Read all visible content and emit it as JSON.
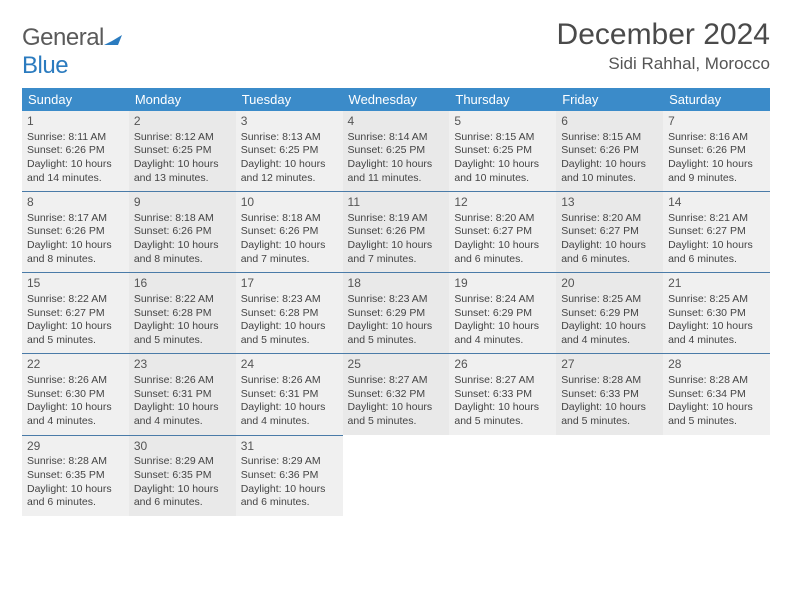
{
  "logo": {
    "general": "General",
    "blue": "Blue"
  },
  "title": "December 2024",
  "location": "Sidi Rahhal, Morocco",
  "day_headers": [
    "Sunday",
    "Monday",
    "Tuesday",
    "Wednesday",
    "Thursday",
    "Friday",
    "Saturday"
  ],
  "colors": {
    "header_bg": "#3b8bc9",
    "header_text": "#ffffff",
    "cell_bg_a": "#f0f0f0",
    "cell_bg_b": "#e9e9e9",
    "row_border": "#4a7ba8",
    "logo_blue": "#2b7bbf",
    "logo_gray": "#5a5a5a"
  },
  "days": [
    {
      "n": "1",
      "sr": "8:11 AM",
      "ss": "6:26 PM",
      "dl": "10 hours and 14 minutes."
    },
    {
      "n": "2",
      "sr": "8:12 AM",
      "ss": "6:25 PM",
      "dl": "10 hours and 13 minutes."
    },
    {
      "n": "3",
      "sr": "8:13 AM",
      "ss": "6:25 PM",
      "dl": "10 hours and 12 minutes."
    },
    {
      "n": "4",
      "sr": "8:14 AM",
      "ss": "6:25 PM",
      "dl": "10 hours and 11 minutes."
    },
    {
      "n": "5",
      "sr": "8:15 AM",
      "ss": "6:25 PM",
      "dl": "10 hours and 10 minutes."
    },
    {
      "n": "6",
      "sr": "8:15 AM",
      "ss": "6:26 PM",
      "dl": "10 hours and 10 minutes."
    },
    {
      "n": "7",
      "sr": "8:16 AM",
      "ss": "6:26 PM",
      "dl": "10 hours and 9 minutes."
    },
    {
      "n": "8",
      "sr": "8:17 AM",
      "ss": "6:26 PM",
      "dl": "10 hours and 8 minutes."
    },
    {
      "n": "9",
      "sr": "8:18 AM",
      "ss": "6:26 PM",
      "dl": "10 hours and 8 minutes."
    },
    {
      "n": "10",
      "sr": "8:18 AM",
      "ss": "6:26 PM",
      "dl": "10 hours and 7 minutes."
    },
    {
      "n": "11",
      "sr": "8:19 AM",
      "ss": "6:26 PM",
      "dl": "10 hours and 7 minutes."
    },
    {
      "n": "12",
      "sr": "8:20 AM",
      "ss": "6:27 PM",
      "dl": "10 hours and 6 minutes."
    },
    {
      "n": "13",
      "sr": "8:20 AM",
      "ss": "6:27 PM",
      "dl": "10 hours and 6 minutes."
    },
    {
      "n": "14",
      "sr": "8:21 AM",
      "ss": "6:27 PM",
      "dl": "10 hours and 6 minutes."
    },
    {
      "n": "15",
      "sr": "8:22 AM",
      "ss": "6:27 PM",
      "dl": "10 hours and 5 minutes."
    },
    {
      "n": "16",
      "sr": "8:22 AM",
      "ss": "6:28 PM",
      "dl": "10 hours and 5 minutes."
    },
    {
      "n": "17",
      "sr": "8:23 AM",
      "ss": "6:28 PM",
      "dl": "10 hours and 5 minutes."
    },
    {
      "n": "18",
      "sr": "8:23 AM",
      "ss": "6:29 PM",
      "dl": "10 hours and 5 minutes."
    },
    {
      "n": "19",
      "sr": "8:24 AM",
      "ss": "6:29 PM",
      "dl": "10 hours and 4 minutes."
    },
    {
      "n": "20",
      "sr": "8:25 AM",
      "ss": "6:29 PM",
      "dl": "10 hours and 4 minutes."
    },
    {
      "n": "21",
      "sr": "8:25 AM",
      "ss": "6:30 PM",
      "dl": "10 hours and 4 minutes."
    },
    {
      "n": "22",
      "sr": "8:26 AM",
      "ss": "6:30 PM",
      "dl": "10 hours and 4 minutes."
    },
    {
      "n": "23",
      "sr": "8:26 AM",
      "ss": "6:31 PM",
      "dl": "10 hours and 4 minutes."
    },
    {
      "n": "24",
      "sr": "8:26 AM",
      "ss": "6:31 PM",
      "dl": "10 hours and 4 minutes."
    },
    {
      "n": "25",
      "sr": "8:27 AM",
      "ss": "6:32 PM",
      "dl": "10 hours and 5 minutes."
    },
    {
      "n": "26",
      "sr": "8:27 AM",
      "ss": "6:33 PM",
      "dl": "10 hours and 5 minutes."
    },
    {
      "n": "27",
      "sr": "8:28 AM",
      "ss": "6:33 PM",
      "dl": "10 hours and 5 minutes."
    },
    {
      "n": "28",
      "sr": "8:28 AM",
      "ss": "6:34 PM",
      "dl": "10 hours and 5 minutes."
    },
    {
      "n": "29",
      "sr": "8:28 AM",
      "ss": "6:35 PM",
      "dl": "10 hours and 6 minutes."
    },
    {
      "n": "30",
      "sr": "8:29 AM",
      "ss": "6:35 PM",
      "dl": "10 hours and 6 minutes."
    },
    {
      "n": "31",
      "sr": "8:29 AM",
      "ss": "6:36 PM",
      "dl": "10 hours and 6 minutes."
    }
  ],
  "labels": {
    "sunrise": "Sunrise: ",
    "sunset": "Sunset: ",
    "daylight": "Daylight: "
  }
}
